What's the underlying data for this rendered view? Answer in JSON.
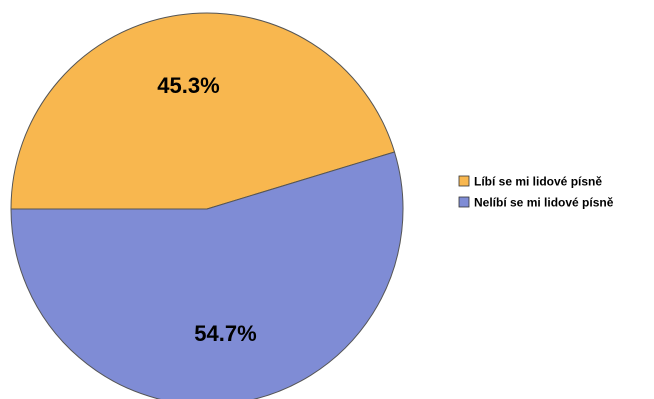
{
  "chart_data": {
    "type": "pie",
    "title": "",
    "slices": [
      {
        "name": "Líbí se mi lidové písně",
        "value": 45.3,
        "label": "45.3%",
        "color": "#F8B74F"
      },
      {
        "name": "Nelíbí se mi lidové písně",
        "value": 54.7,
        "label": "54.7%",
        "color": "#7F8CD5"
      }
    ],
    "legend_position": "right",
    "outline_color": "#555555"
  }
}
